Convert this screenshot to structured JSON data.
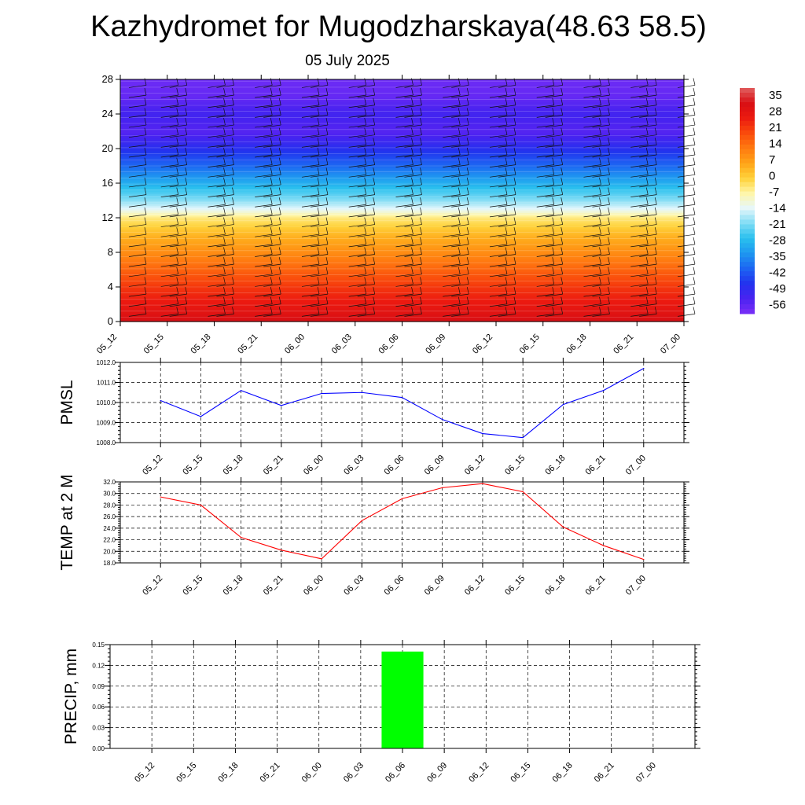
{
  "title": "Kazhydromet for Mugodzharskaya(48.63 58.5)",
  "subtitle": "05 July 2025",
  "time_labels": [
    "05_12",
    "05_15",
    "05_18",
    "05_21",
    "06_00",
    "06_03",
    "06_06",
    "06_09",
    "06_12",
    "06_15",
    "06_18",
    "06_21",
    "07_00"
  ],
  "colors": {
    "pmsl_line": "#0000ff",
    "temp_line": "#ff0000",
    "precip_bar": "#00ff00",
    "colormap": [
      "#7b2ff7",
      "#4a22f0",
      "#2233ee",
      "#1d66f2",
      "#1e97f0",
      "#2ac0ee",
      "#7fdcf5",
      "#e6f7fb",
      "#fff6a8",
      "#ffd23a",
      "#ffa418",
      "#ff7a10",
      "#f94a0c",
      "#ec1a10",
      "#d80f14",
      "#e06060"
    ]
  },
  "chart_data": [
    {
      "type": "heatmap",
      "description_free": true,
      "x": [
        "05_12",
        "05_15",
        "05_18",
        "05_21",
        "06_00",
        "06_03",
        "06_06",
        "06_09",
        "06_12",
        "06_15",
        "06_18",
        "06_21",
        "07_00"
      ],
      "ylim": [
        0,
        28
      ],
      "yticks": [
        0,
        4,
        8,
        12,
        16,
        20,
        24,
        28
      ],
      "colorbar_ticks": [
        35,
        28,
        21,
        14,
        7,
        0,
        -7,
        -14,
        -21,
        -28,
        -35,
        -42,
        -49,
        -56
      ],
      "colorbar_range": [
        -60,
        38
      ],
      "profile": [
        {
          "y": 0,
          "value": 32
        },
        {
          "y": 2,
          "value": 26
        },
        {
          "y": 4,
          "value": 21
        },
        {
          "y": 6,
          "value": 15
        },
        {
          "y": 8,
          "value": 9
        },
        {
          "y": 10,
          "value": 3
        },
        {
          "y": 12,
          "value": -5
        },
        {
          "y": 13,
          "value": -14
        },
        {
          "y": 14,
          "value": -20
        },
        {
          "y": 16,
          "value": -30
        },
        {
          "y": 18,
          "value": -40
        },
        {
          "y": 20,
          "value": -48
        },
        {
          "y": 22,
          "value": -55
        },
        {
          "y": 24,
          "value": -52
        },
        {
          "y": 26,
          "value": -57
        },
        {
          "y": 28,
          "value": -58
        }
      ]
    },
    {
      "type": "line",
      "name": "pmsl",
      "ylabel": "PMSL",
      "ylim": [
        1008.0,
        1012.0
      ],
      "yticks": [
        "1008.0",
        "1009.0",
        "1010.0",
        "1011.0",
        "1012.0"
      ],
      "x": [
        "05_12",
        "05_15",
        "05_18",
        "05_21",
        "06_00",
        "06_03",
        "06_06",
        "06_09",
        "06_12",
        "06_15",
        "06_18",
        "06_21",
        "07_00"
      ],
      "values": [
        1010.1,
        1009.3,
        1010.6,
        1009.85,
        1010.45,
        1010.5,
        1010.25,
        1009.15,
        1008.45,
        1008.25,
        1009.9,
        1010.6,
        1011.7
      ]
    },
    {
      "type": "line",
      "name": "temp",
      "ylabel": "TEMP at 2 M",
      "ylim": [
        18.0,
        32.0
      ],
      "yticks": [
        "18.0",
        "20.0",
        "22.0",
        "24.0",
        "26.0",
        "28.0",
        "30.0",
        "32.0"
      ],
      "x": [
        "05_12",
        "05_15",
        "05_18",
        "05_21",
        "06_00",
        "06_03",
        "06_06",
        "06_09",
        "06_12",
        "06_15",
        "06_18",
        "06_21",
        "07_00"
      ],
      "values": [
        29.4,
        28.0,
        22.4,
        20.2,
        18.7,
        25.3,
        29.1,
        31.0,
        31.7,
        30.3,
        24.2,
        21.0,
        18.6
      ]
    },
    {
      "type": "bar",
      "name": "precip",
      "ylabel": "PRECIP, mm",
      "ylim": [
        0.0,
        0.15
      ],
      "yticks": [
        "0.00",
        "0.03",
        "0.06",
        "0.09",
        "0.12",
        "0.15"
      ],
      "categories": [
        "05_12",
        "05_15",
        "05_18",
        "05_21",
        "06_00",
        "06_03",
        "06_06",
        "06_09",
        "06_12",
        "06_15",
        "06_18",
        "06_21",
        "07_00"
      ],
      "values": [
        0,
        0,
        0,
        0,
        0,
        0,
        0.14,
        0,
        0,
        0,
        0,
        0,
        0
      ]
    }
  ]
}
